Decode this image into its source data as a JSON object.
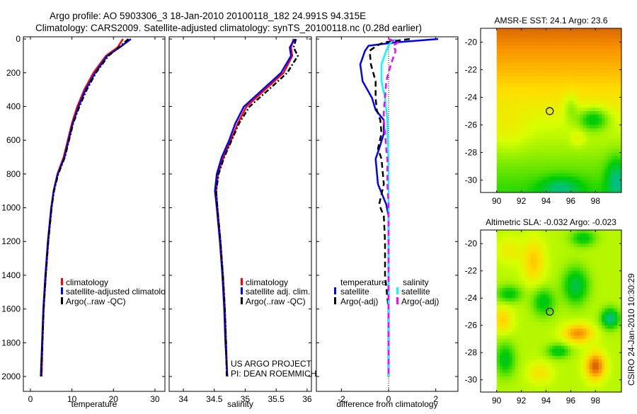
{
  "titles": {
    "line1": "Argo profile: AO 5903306_3 18-Jan-2010 20100118_182 24.991S 94.315E",
    "line2": "Climatology: CARS2009. Satellite-adjusted climatology: synTS_20100118.nc (0.28d earlier)"
  },
  "credits": {
    "project": "US ARGO PROJECT",
    "pi": "PI: DEAN ROEMMICH",
    "stamp": "CSIRO 24-Jan-2010 10:30:29"
  },
  "colors": {
    "climatology": "#ff0000",
    "satellite": "#0000ff",
    "argo": "#000000",
    "sal_satellite": "#00ffff",
    "sal_argo": "#ff00ff"
  },
  "chart_data": [
    {
      "type": "line",
      "xlabel": "temperature",
      "ylabel": "",
      "xlim": [
        -1.7,
        32.4
      ],
      "ylim": [
        2088,
        -13
      ],
      "xticks": [
        "0",
        "10",
        "20",
        "30"
      ],
      "yticks": [
        "0",
        "200",
        "400",
        "600",
        "800",
        "1000",
        "1200",
        "1400",
        "1600",
        "1800",
        "2000"
      ],
      "legend": [
        "climatology",
        "satellite-adjusted climatology",
        "Argo(..raw -QC)"
      ],
      "depth": [
        0,
        50,
        100,
        200,
        300,
        400,
        500,
        600,
        700,
        800,
        900,
        1000,
        1200,
        1400,
        1600,
        1800,
        2000
      ],
      "series": [
        {
          "name": "climatology",
          "style": "solid",
          "values": [
            22.3,
            21.0,
            18.2,
            15.2,
            13.0,
            11.3,
            10.0,
            9.0,
            8.0,
            6.5,
            5.6,
            5.1,
            4.3,
            3.7,
            3.2,
            2.9,
            2.7
          ]
        },
        {
          "name": "satellite-adjusted climatology",
          "style": "solid",
          "values": [
            24.2,
            21.5,
            18.5,
            15.6,
            13.3,
            11.6,
            10.2,
            9.2,
            8.2,
            6.6,
            5.6,
            5.0,
            4.2,
            3.6,
            3.1,
            2.8,
            2.5
          ]
        },
        {
          "name": "Argo(..raw -QC)",
          "style": "dashdot",
          "values": [
            23.6,
            21.3,
            18.8,
            15.8,
            13.6,
            11.8,
            10.3,
            9.3,
            8.3,
            6.7,
            5.7,
            5.1,
            4.3,
            3.7,
            3.2,
            2.9,
            2.6
          ]
        }
      ]
    },
    {
      "type": "line",
      "xlabel": "salinity",
      "xlim": [
        33.77,
        36.07
      ],
      "ylim": [
        2088,
        -13
      ],
      "xticks": [
        "34",
        "34.5",
        "35",
        "35.5",
        "36"
      ],
      "legend": [
        "climatology",
        "satellite adj. clim.",
        "Argo(..raw -QC)"
      ],
      "depth": [
        0,
        50,
        100,
        200,
        300,
        400,
        500,
        600,
        700,
        800,
        900,
        1000,
        1200,
        1400,
        1600,
        1800,
        2000
      ],
      "series": [
        {
          "name": "climatology",
          "style": "solid",
          "values": [
            35.78,
            35.74,
            35.76,
            35.62,
            35.32,
            35.02,
            34.88,
            34.77,
            34.65,
            34.56,
            34.53,
            34.55,
            34.6,
            34.64,
            34.67,
            34.69,
            34.71
          ]
        },
        {
          "name": "satellite adj. clim.",
          "style": "solid",
          "values": [
            35.8,
            35.72,
            35.74,
            35.58,
            35.28,
            34.98,
            34.84,
            34.74,
            34.62,
            34.54,
            34.51,
            34.54,
            34.59,
            34.63,
            34.66,
            34.68,
            34.71
          ]
        },
        {
          "name": "Argo(..raw -QC)",
          "style": "dashdot",
          "values": [
            35.82,
            35.78,
            35.85,
            35.68,
            35.38,
            35.07,
            34.9,
            34.78,
            34.66,
            34.57,
            34.53,
            34.55,
            34.6,
            34.64,
            34.67,
            34.69,
            34.7
          ]
        }
      ]
    },
    {
      "type": "line",
      "xlabel": "difference from climatology",
      "xlim": [
        -3.06,
        2.94
      ],
      "ylim": [
        2088,
        -13
      ],
      "xticks": [
        "-2",
        "0",
        "2"
      ],
      "legend_groups": [
        {
          "title": "temperature",
          "items": [
            "satellite",
            "Argo(-adj)"
          ]
        },
        {
          "title": "salinity",
          "items": [
            "satellite",
            "Argo(-adj)"
          ]
        }
      ],
      "depth": [
        0,
        20,
        40,
        70,
        150,
        250,
        350,
        420,
        480,
        560,
        650,
        710,
        860,
        980,
        1050,
        1200,
        1400,
        1600,
        1800,
        2000
      ],
      "series": [
        {
          "name": "temperature satellite",
          "style": "solid",
          "values": [
            2.1,
            0.3,
            -0.85,
            -1.0,
            -1.2,
            -1.1,
            -0.7,
            -0.55,
            -0.2,
            -0.2,
            -0.4,
            -0.55,
            -0.45,
            -0.1,
            0,
            0,
            0,
            0,
            0,
            0
          ]
        },
        {
          "name": "temperature Argo(-adj)",
          "style": "dashed",
          "values": [
            0.9,
            -0.2,
            -0.5,
            -0.8,
            -0.75,
            -0.55,
            -0.55,
            -0.5,
            -0.35,
            -0.3,
            -0.45,
            -0.3,
            -0.2,
            -0.4,
            -0.2,
            -0.15,
            -0.15,
            0,
            0,
            0
          ]
        },
        {
          "name": "salinity satellite",
          "style": "solid",
          "values": [
            0.3,
            0.1,
            0,
            -0.1,
            -0.3,
            -0.3,
            -0.15,
            -0.1,
            -0.05,
            -0.05,
            -0.02,
            0,
            0,
            0,
            0,
            0,
            0,
            0,
            0,
            0
          ]
        },
        {
          "name": "salinity Argo(-adj)",
          "style": "dashed",
          "values": [
            0.0,
            0.4,
            0.2,
            0.3,
            0.1,
            -0.1,
            -0.15,
            -0.2,
            -0.2,
            -0.15,
            -0.1,
            -0.05,
            -0.05,
            0,
            0,
            0,
            0,
            0,
            0,
            0
          ]
        }
      ]
    },
    {
      "type": "heatmap",
      "title": "AMSR-E SST: 24.1 Argo: 23.6",
      "xlim": [
        88.7,
        100.1
      ],
      "ylim": [
        -30.9,
        -19.0
      ],
      "xticks": [
        "90",
        "92",
        "94",
        "96",
        "98"
      ],
      "yticks": [
        "-20",
        "-22",
        "-24",
        "-26",
        "-28",
        "-30"
      ],
      "marker": {
        "lon": 94.3,
        "lat": -25.0
      }
    },
    {
      "type": "heatmap",
      "title": "Altimetric SLA: -0.032 Argo: -0.023",
      "xlim": [
        88.7,
        100.1
      ],
      "ylim": [
        -30.9,
        -19.0
      ],
      "xticks": [
        "90",
        "92",
        "94",
        "96",
        "98"
      ],
      "yticks": [
        "-20",
        "-22",
        "-24",
        "-26",
        "-28",
        "-30"
      ],
      "marker": {
        "lon": 94.3,
        "lat": -25.0
      }
    }
  ]
}
